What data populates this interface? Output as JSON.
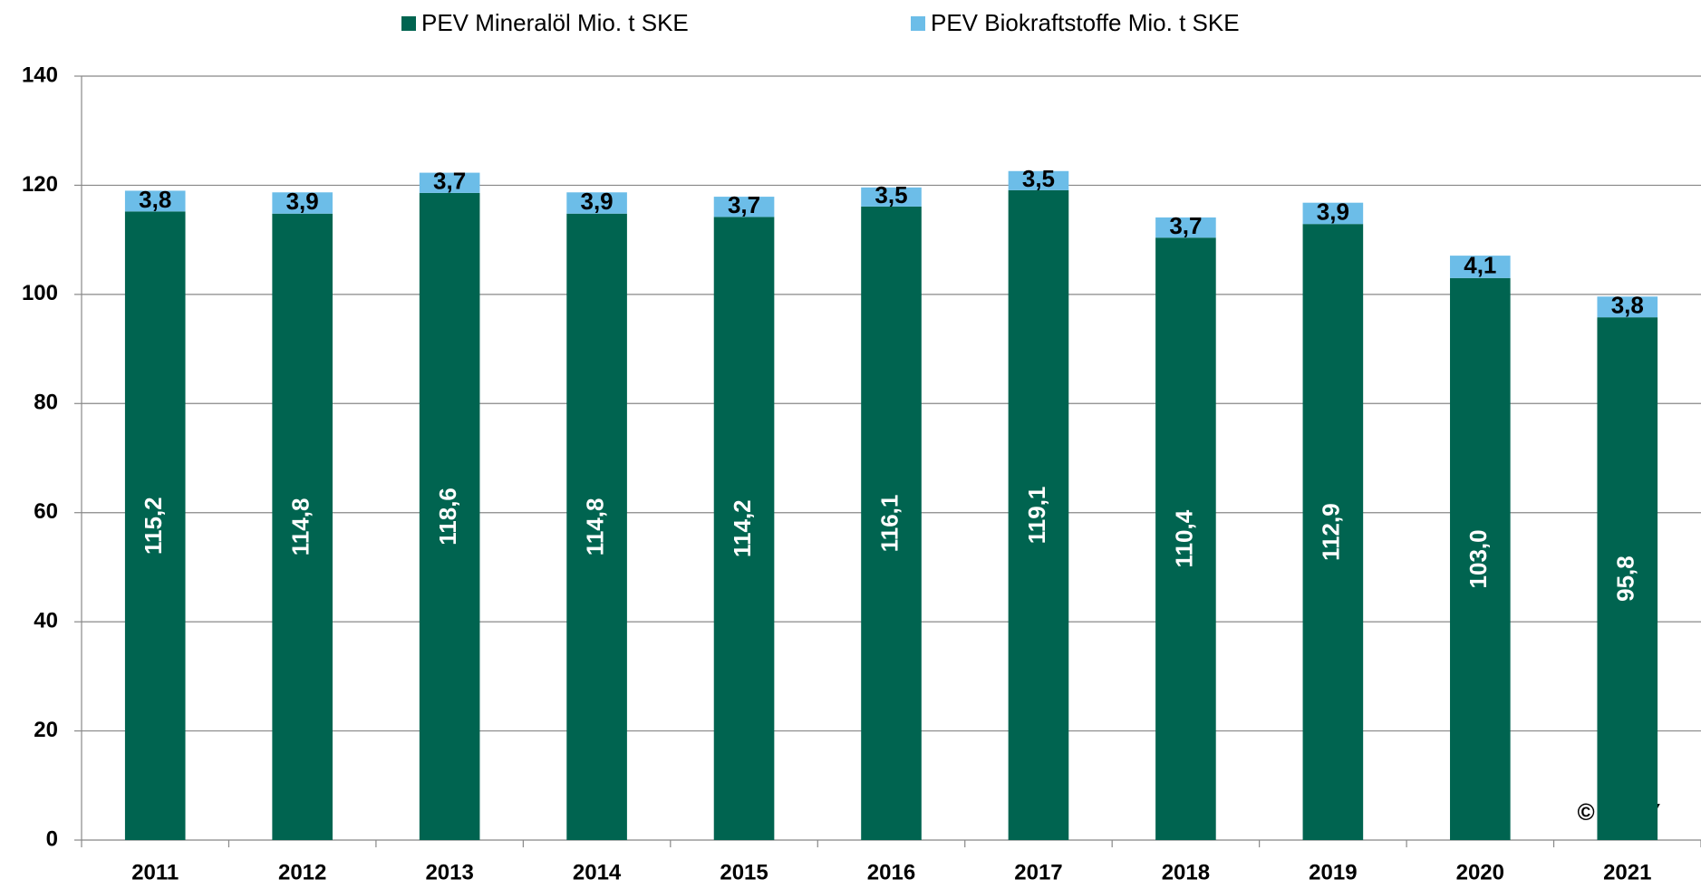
{
  "chart_data": {
    "type": "stacked_bar",
    "categories": [
      "2011",
      "2012",
      "2013",
      "2014",
      "2015",
      "2016",
      "2017",
      "2018",
      "2019",
      "2020",
      "2021"
    ],
    "series": [
      {
        "name": "PEV Mineralöl Mio. t SKE",
        "color": "#006450",
        "values": [
          115.2,
          114.8,
          118.6,
          114.8,
          114.2,
          116.1,
          119.1,
          110.4,
          112.9,
          103.0,
          95.8
        ],
        "value_labels": [
          "115,2",
          "114,8",
          "118,6",
          "114,8",
          "114,2",
          "116,1",
          "119,1",
          "110,4",
          "112,9",
          "103,0",
          "95,8"
        ]
      },
      {
        "name": "PEV Biokraftstoffe Mio. t SKE",
        "color": "#6cbde8",
        "values": [
          3.8,
          3.9,
          3.7,
          3.9,
          3.7,
          3.5,
          3.5,
          3.7,
          3.9,
          4.1,
          3.8
        ],
        "value_labels": [
          "3,8",
          "3,9",
          "3,7",
          "3,9",
          "3,7",
          "3,5",
          "3,5",
          "3,7",
          "3,9",
          "4,1",
          "3,8"
        ]
      }
    ],
    "ylim": [
      0,
      140
    ],
    "yticks": [
      0,
      20,
      40,
      60,
      80,
      100,
      120,
      140
    ],
    "grid": true,
    "legend": "top",
    "watermark": "© MWV"
  }
}
